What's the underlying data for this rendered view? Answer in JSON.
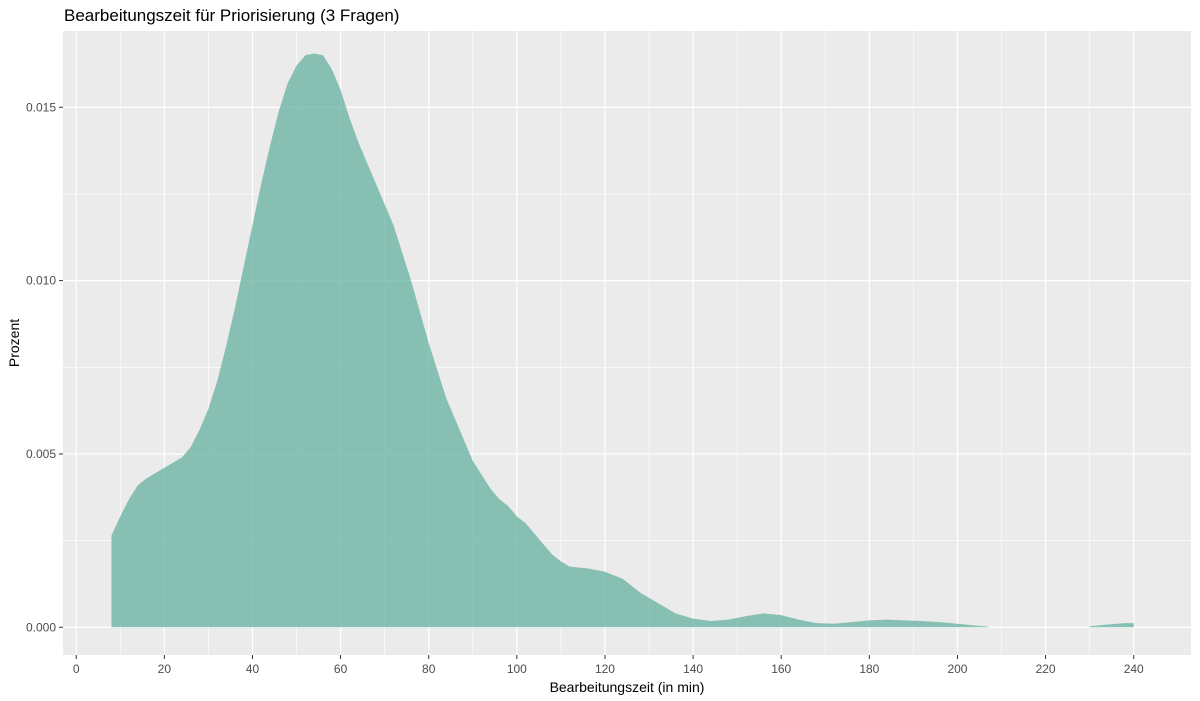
{
  "chart_data": {
    "type": "area",
    "title": "Bearbeitungszeit für Priorisierung (3 Fragen)",
    "xlabel": "Bearbeitungszeit (in min)",
    "ylabel": "Prozent",
    "xlim": [
      -3,
      253
    ],
    "ylim": [
      -0.0008,
      0.0172
    ],
    "x_ticks": [
      0,
      20,
      40,
      60,
      80,
      100,
      120,
      140,
      160,
      180,
      200,
      220,
      240
    ],
    "y_ticks": [
      0.0,
      0.005,
      0.01,
      0.015
    ],
    "x_tick_labels": [
      "0",
      "20",
      "40",
      "60",
      "80",
      "100",
      "120",
      "140",
      "160",
      "180",
      "200",
      "220",
      "240"
    ],
    "y_tick_labels": [
      "0.000",
      "0.005",
      "0.010",
      "0.015"
    ],
    "grid": true,
    "fill_color": "#66b2a0",
    "panel_color": "#ebebeb",
    "series": [
      {
        "segments": [
          [
            [
              8,
              0.00265
            ],
            [
              10,
              0.0032
            ],
            [
              12,
              0.0037
            ],
            [
              14,
              0.0041
            ],
            [
              16,
              0.0043
            ],
            [
              20,
              0.0046
            ],
            [
              24,
              0.0049
            ],
            [
              26,
              0.0052
            ],
            [
              28,
              0.0057
            ],
            [
              30,
              0.0063
            ],
            [
              32,
              0.0071
            ],
            [
              34,
              0.0081
            ],
            [
              36,
              0.0092
            ],
            [
              38,
              0.0104
            ],
            [
              40,
              0.0116
            ],
            [
              42,
              0.0128
            ],
            [
              44,
              0.0139
            ],
            [
              46,
              0.0149
            ],
            [
              48,
              0.0157
            ],
            [
              50,
              0.0162
            ],
            [
              52,
              0.0165
            ],
            [
              54,
              0.01655
            ],
            [
              56,
              0.0165
            ],
            [
              58,
              0.0161
            ],
            [
              60,
              0.0155
            ],
            [
              62,
              0.0147
            ],
            [
              64,
              0.014
            ],
            [
              66,
              0.0134
            ],
            [
              68,
              0.0128
            ],
            [
              70,
              0.0122
            ],
            [
              72,
              0.0116
            ],
            [
              74,
              0.0108
            ],
            [
              76,
              0.01
            ],
            [
              78,
              0.0091
            ],
            [
              80,
              0.0082
            ],
            [
              82,
              0.0074
            ],
            [
              84,
              0.0066
            ],
            [
              86,
              0.006
            ],
            [
              88,
              0.0054
            ],
            [
              90,
              0.0048
            ],
            [
              92,
              0.0044
            ],
            [
              94,
              0.004
            ],
            [
              96,
              0.0037
            ],
            [
              98,
              0.0035
            ],
            [
              100,
              0.0032
            ],
            [
              102,
              0.003
            ],
            [
              104,
              0.0027
            ],
            [
              106,
              0.0024
            ],
            [
              108,
              0.0021
            ],
            [
              110,
              0.0019
            ],
            [
              112,
              0.00175
            ],
            [
              116,
              0.0017
            ],
            [
              120,
              0.0016
            ],
            [
              124,
              0.0014
            ],
            [
              128,
              0.001
            ],
            [
              132,
              0.0007
            ],
            [
              136,
              0.0004
            ],
            [
              140,
              0.00025
            ],
            [
              144,
              0.00018
            ],
            [
              148,
              0.00022
            ],
            [
              152,
              0.00032
            ],
            [
              156,
              0.0004
            ],
            [
              160,
              0.00035
            ],
            [
              164,
              0.00022
            ],
            [
              168,
              0.00012
            ],
            [
              172,
              0.0001
            ],
            [
              176,
              0.00015
            ],
            [
              180,
              0.0002
            ],
            [
              184,
              0.00022
            ],
            [
              188,
              0.0002
            ],
            [
              192,
              0.00018
            ],
            [
              196,
              0.00015
            ],
            [
              200,
              0.0001
            ],
            [
              204,
              5e-05
            ],
            [
              207,
              2e-05
            ]
          ],
          [
            [
              230,
              3e-05
            ],
            [
              234,
              8e-05
            ],
            [
              238,
              0.00012
            ],
            [
              240,
              0.00012
            ]
          ]
        ]
      }
    ]
  }
}
